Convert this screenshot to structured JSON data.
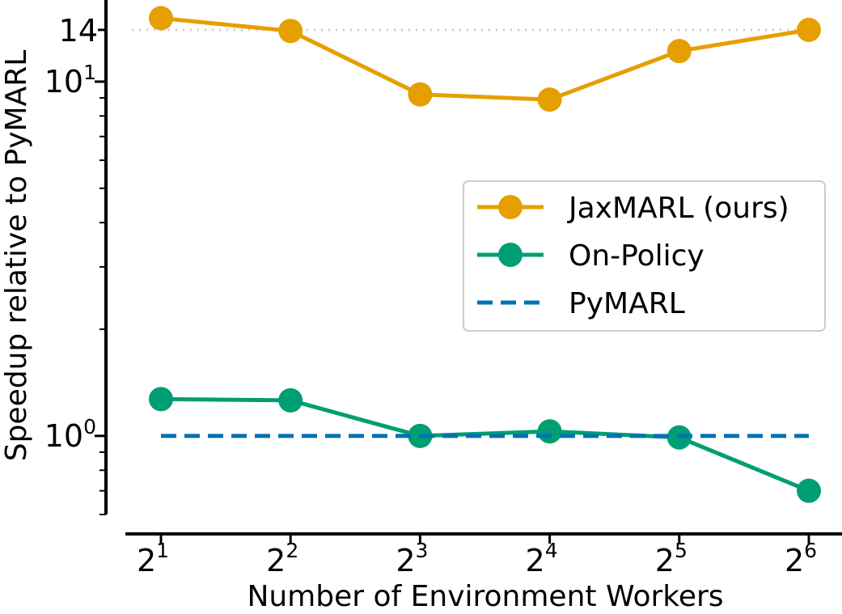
{
  "chart_data": {
    "type": "line",
    "title": "",
    "xlabel": "Number of Environment Workers",
    "ylabel": "Speedup relative to PyMARL",
    "x": [
      2,
      4,
      8,
      16,
      32,
      64
    ],
    "x_ticks": [
      {
        "value": 2,
        "base": "2",
        "exp": "1"
      },
      {
        "value": 4,
        "base": "2",
        "exp": "2"
      },
      {
        "value": 8,
        "base": "2",
        "exp": "3"
      },
      {
        "value": 16,
        "base": "2",
        "exp": "4"
      },
      {
        "value": 32,
        "base": "2",
        "exp": "5"
      },
      {
        "value": 64,
        "base": "2",
        "exp": "6"
      }
    ],
    "x_scale": "log2",
    "y_scale": "log10",
    "ylim": [
      0.6,
      17
    ],
    "y_ticks": [
      {
        "value": 1,
        "base": "10",
        "exp": "0"
      },
      {
        "value": 10,
        "base": "10",
        "exp": "1"
      }
    ],
    "y_reference": {
      "value": 14,
      "label": "14",
      "style": "dotted",
      "color": "#cccccc"
    },
    "grid": false,
    "legend_position": "center-right",
    "series": [
      {
        "name": "JaxMARL (ours)",
        "color": "#e69f00",
        "style": "solid-marker",
        "values": [
          15.1,
          13.9,
          9.2,
          8.9,
          12.2,
          14.0
        ]
      },
      {
        "name": "On-Policy",
        "color": "#009e73",
        "style": "solid-marker",
        "values": [
          1.27,
          1.26,
          1.0,
          1.03,
          0.99,
          0.7
        ]
      },
      {
        "name": "PyMARL",
        "color": "#0072b2",
        "style": "dashed",
        "values": [
          1,
          1,
          1,
          1,
          1,
          1
        ]
      }
    ]
  }
}
